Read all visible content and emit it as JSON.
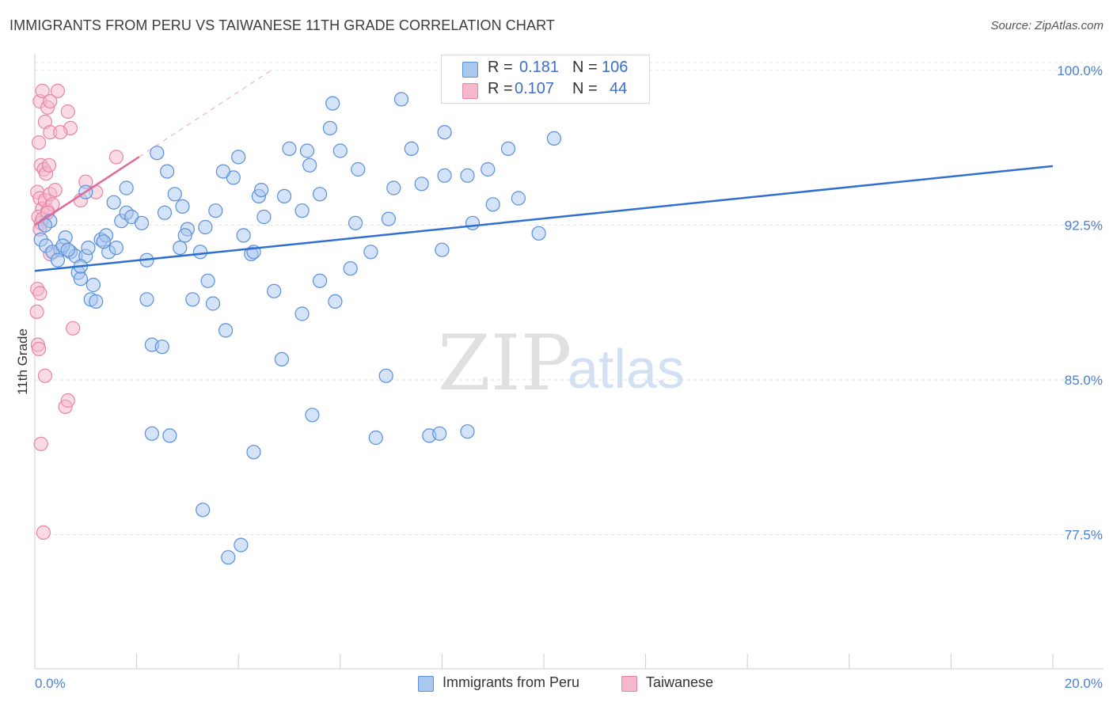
{
  "header": {
    "title": "IMMIGRANTS FROM PERU VS TAIWANESE 11TH GRADE CORRELATION CHART",
    "source": "Source: ZipAtlas.com"
  },
  "watermark": {
    "zip": "ZIP",
    "atlas": "atlas"
  },
  "legend": {
    "r_label": "R =",
    "n_label": "N =",
    "rows": [
      {
        "r": "0.181",
        "n": "106"
      },
      {
        "r": "0.107",
        "n": "44"
      }
    ]
  },
  "colors": {
    "blue_fill": "#a9c8f0",
    "blue_stroke": "#5a8fd9",
    "blue_line": "#2f6fcf",
    "pink_fill": "#f5b8cb",
    "pink_stroke": "#e884a6",
    "pink_line": "#e0699a",
    "tick_text": "#4a7fd4"
  },
  "chart_data": {
    "type": "scatter",
    "title": "IMMIGRANTS FROM PERU VS TAIWANESE 11TH GRADE CORRELATION CHART",
    "xlabel": "",
    "ylabel": "11th Grade",
    "xlim": [
      0,
      20
    ],
    "ylim": [
      71.0,
      100.8
    ],
    "x_tick_labels": [
      "0.0%",
      "20.0%"
    ],
    "y_ticks": [
      100.0,
      92.5,
      85.0,
      77.5
    ],
    "y_tick_labels": [
      "100.0%",
      "92.5%",
      "85.0%",
      "77.5%"
    ],
    "grid": true,
    "legend_position": "top-center",
    "series": [
      {
        "name": "Immigrants from Peru",
        "r": 0.181,
        "n": 106,
        "trend": {
          "x": [
            0,
            20
          ],
          "y": [
            90.28,
            95.36
          ]
        },
        "points": [
          [
            0.12,
            91.8
          ],
          [
            0.22,
            91.5
          ],
          [
            0.3,
            92.7
          ],
          [
            0.5,
            91.3
          ],
          [
            0.7,
            91.2
          ],
          [
            0.8,
            91.0
          ],
          [
            0.85,
            90.2
          ],
          [
            0.9,
            89.9
          ],
          [
            1.0,
            91.0
          ],
          [
            1.1,
            88.9
          ],
          [
            1.15,
            89.6
          ],
          [
            1.3,
            91.8
          ],
          [
            1.4,
            92.0
          ],
          [
            1.45,
            91.2
          ],
          [
            1.6,
            91.4
          ],
          [
            1.7,
            92.7
          ],
          [
            1.8,
            93.1
          ],
          [
            1.9,
            92.9
          ],
          [
            2.1,
            92.6
          ],
          [
            2.2,
            88.9
          ],
          [
            2.3,
            86.7
          ],
          [
            2.5,
            86.6
          ],
          [
            2.65,
            82.3
          ],
          [
            2.75,
            94.0
          ],
          [
            2.9,
            93.4
          ],
          [
            3.0,
            92.3
          ],
          [
            3.1,
            88.9
          ],
          [
            3.25,
            91.2
          ],
          [
            3.4,
            89.8
          ],
          [
            3.5,
            88.7
          ],
          [
            3.75,
            87.4
          ],
          [
            3.8,
            76.4
          ],
          [
            3.9,
            94.8
          ],
          [
            4.1,
            92.0
          ],
          [
            4.25,
            91.1
          ],
          [
            4.4,
            93.9
          ],
          [
            4.45,
            94.2
          ],
          [
            4.5,
            92.9
          ],
          [
            4.7,
            89.3
          ],
          [
            4.85,
            86.0
          ],
          [
            5.0,
            96.2
          ],
          [
            5.25,
            88.2
          ],
          [
            5.35,
            96.1
          ],
          [
            5.6,
            89.8
          ],
          [
            5.85,
            98.4
          ],
          [
            5.8,
            97.2
          ],
          [
            5.9,
            88.8
          ],
          [
            6.0,
            96.1
          ],
          [
            5.4,
            95.4
          ],
          [
            6.2,
            90.4
          ],
          [
            6.6,
            91.2
          ],
          [
            6.95,
            92.8
          ],
          [
            7.05,
            94.3
          ],
          [
            7.2,
            98.6
          ],
          [
            7.4,
            96.2
          ],
          [
            7.6,
            94.5
          ],
          [
            7.75,
            82.3
          ],
          [
            8.05,
            97.0
          ],
          [
            8.5,
            94.9
          ],
          [
            8.6,
            92.6
          ],
          [
            9.0,
            93.5
          ],
          [
            9.3,
            96.2
          ],
          [
            9.9,
            92.1
          ],
          [
            1.8,
            94.3
          ],
          [
            1.2,
            88.8
          ],
          [
            2.6,
            95.1
          ],
          [
            0.6,
            91.9
          ],
          [
            1.0,
            94.1
          ],
          [
            2.4,
            96.0
          ],
          [
            2.85,
            91.4
          ],
          [
            3.3,
            78.7
          ],
          [
            4.3,
            81.5
          ],
          [
            6.9,
            85.2
          ],
          [
            6.7,
            82.2
          ],
          [
            8.5,
            82.5
          ],
          [
            7.95,
            82.4
          ],
          [
            2.3,
            82.4
          ],
          [
            4.05,
            77.0
          ],
          [
            5.45,
            83.3
          ],
          [
            5.25,
            93.2
          ],
          [
            8.0,
            91.3
          ],
          [
            4.3,
            91.2
          ],
          [
            3.7,
            95.1
          ],
          [
            4.0,
            95.8
          ],
          [
            4.9,
            93.9
          ],
          [
            3.35,
            92.4
          ],
          [
            2.2,
            90.8
          ],
          [
            2.55,
            93.1
          ],
          [
            1.55,
            93.6
          ],
          [
            1.35,
            91.7
          ],
          [
            1.05,
            91.4
          ],
          [
            3.55,
            93.2
          ],
          [
            6.35,
            95.2
          ],
          [
            0.35,
            91.2
          ],
          [
            8.9,
            95.2
          ],
          [
            10.2,
            96.7
          ],
          [
            0.45,
            90.8
          ],
          [
            0.55,
            91.5
          ],
          [
            9.5,
            93.8
          ],
          [
            8.05,
            94.9
          ],
          [
            0.2,
            92.5
          ],
          [
            2.95,
            92.0
          ],
          [
            5.6,
            94.0
          ],
          [
            6.3,
            92.6
          ],
          [
            0.65,
            91.3
          ],
          [
            0.9,
            90.5
          ]
        ]
      },
      {
        "name": "Taiwanese",
        "r": 0.107,
        "n": 44,
        "trend": {
          "x": [
            0,
            2.05
          ],
          "y": [
            92.5,
            95.81
          ]
        },
        "points": [
          [
            0.1,
            98.5
          ],
          [
            0.15,
            99.0
          ],
          [
            0.2,
            97.5
          ],
          [
            0.25,
            98.2
          ],
          [
            0.3,
            97.0
          ],
          [
            0.08,
            96.5
          ],
          [
            0.12,
            95.4
          ],
          [
            0.18,
            95.2
          ],
          [
            0.22,
            95.0
          ],
          [
            0.28,
            95.4
          ],
          [
            0.05,
            94.1
          ],
          [
            0.1,
            93.8
          ],
          [
            0.15,
            93.3
          ],
          [
            0.2,
            93.7
          ],
          [
            0.25,
            93.2
          ],
          [
            0.3,
            94.0
          ],
          [
            0.35,
            93.5
          ],
          [
            0.07,
            92.9
          ],
          [
            0.12,
            92.6
          ],
          [
            0.05,
            89.4
          ],
          [
            0.1,
            89.2
          ],
          [
            0.04,
            88.3
          ],
          [
            0.06,
            86.7
          ],
          [
            0.08,
            86.5
          ],
          [
            0.2,
            85.2
          ],
          [
            0.6,
            83.7
          ],
          [
            0.65,
            84.0
          ],
          [
            0.12,
            81.9
          ],
          [
            0.17,
            77.6
          ],
          [
            0.75,
            87.5
          ],
          [
            1.0,
            94.6
          ],
          [
            1.2,
            94.1
          ],
          [
            1.6,
            95.8
          ],
          [
            0.9,
            93.7
          ],
          [
            0.7,
            97.2
          ],
          [
            0.65,
            98.0
          ],
          [
            0.45,
            99.0
          ],
          [
            0.3,
            98.5
          ],
          [
            0.5,
            97.0
          ],
          [
            0.4,
            94.2
          ],
          [
            0.15,
            92.8
          ],
          [
            0.1,
            92.3
          ],
          [
            0.3,
            91.1
          ],
          [
            0.25,
            93.1
          ]
        ]
      }
    ]
  },
  "bottom_legend": [
    {
      "label": "Immigrants from Peru"
    },
    {
      "label": "Taiwanese"
    }
  ]
}
